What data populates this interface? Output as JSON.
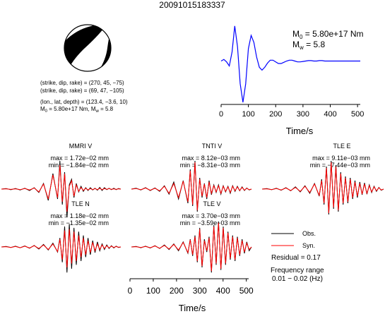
{
  "figure_title": "20091015183337",
  "mechanism": {
    "line1": "(strike, dip, rake) = (270, 45, −75)",
    "line2": "(strike, dip, rake) = (69, 47, −105)",
    "line3": "(lon., lat, depth) = (123.4, −3.6, 10)",
    "line4_prefix": "M",
    "line4_sub": "0",
    "line4_rest": " = 5.80e+17 Nm, M",
    "line4_sub2": "w",
    "line4_end": " = 5.8",
    "colors": {
      "compression": "#000000",
      "dilatation": "#ffffff"
    }
  },
  "moment_rate": {
    "m0_prefix": "M",
    "m0_sub": "0",
    "m0_rest": " = 5.80e+17 Nm",
    "mw_prefix": "M",
    "mw_sub": "w",
    "mw_rest": " = 5.8",
    "xlabel": "Time/s",
    "xticks": [
      "0",
      "100",
      "200",
      "300",
      "400",
      "500"
    ],
    "color": "#0000ff"
  },
  "traces": [
    {
      "station": "MMRI V",
      "max": "max = 1.72e−02 mm",
      "min": "min = −1.84e−02 mm"
    },
    {
      "station": "TNTI V",
      "max": "max = 8.12e−03 mm",
      "min": "min = −8.31e−03 mm"
    },
    {
      "station": "TLE E",
      "max": "max = 9.11e−03 mm",
      "min": "min = −7.44e−03 mm"
    },
    {
      "station": "TLE N",
      "max": "max = 1.18e−02 mm",
      "min": "min = −1.35e−02 mm"
    },
    {
      "station": "TLE V",
      "max": "max = 3.70e−03 mm",
      "min": "min = −3.59e−03 mm"
    }
  ],
  "waveform_axis": {
    "xlabel": "Time/s",
    "xticks": [
      "0",
      "100",
      "200",
      "300",
      "400",
      "500"
    ]
  },
  "legend": {
    "obs_label": "Obs.",
    "syn_label": "Syn.",
    "obs_color": "#000000",
    "syn_color": "#ff0000",
    "residual": "Residual = 0.17",
    "freq_label": "Frequency range",
    "freq_value": "0.01 − 0.02 (Hz)"
  },
  "chart_data": [
    {
      "type": "line",
      "name": "moment-rate-function",
      "xlabel": "Time/s",
      "ylabel": "",
      "xlim": [
        0,
        510
      ],
      "ylim": [
        -1.0,
        1.0
      ],
      "x": [
        0,
        10,
        20,
        30,
        40,
        50,
        60,
        70,
        80,
        90,
        100,
        110,
        120,
        130,
        140,
        150,
        160,
        170,
        180,
        190,
        200,
        210,
        220,
        230,
        240,
        250,
        260,
        270,
        280,
        290,
        300,
        310,
        320,
        330,
        340,
        350,
        360,
        370,
        380,
        390,
        400,
        410,
        420,
        430,
        440,
        450,
        460,
        470,
        480,
        490,
        500,
        510
      ],
      "series": [
        {
          "values": [
            0.0,
            0.04,
            -0.02,
            -0.12,
            0.22,
            0.85,
            0.35,
            -0.55,
            -1.0,
            -0.55,
            0.3,
            0.62,
            0.45,
            0.1,
            -0.15,
            -0.22,
            -0.15,
            -0.05,
            0.02,
            0.02,
            -0.02,
            -0.06,
            -0.06,
            -0.03,
            0.0,
            0.02,
            0.02,
            0.0,
            -0.02,
            -0.02,
            -0.01,
            0.0,
            0.01,
            0.01,
            0.0,
            0.0,
            0.01,
            0.01,
            0.0,
            0.0,
            0.0,
            0.0,
            0.0,
            0.0,
            0.0,
            0.0,
            0.0,
            0.0,
            0.0,
            0.0,
            0.0,
            0.0
          ]
        }
      ]
    },
    {
      "type": "line",
      "name": "waveform-fits",
      "xlabel": "Time/s",
      "ylabel": "",
      "xlim": [
        0,
        510
      ],
      "ylim": [
        -1.05,
        1.05
      ],
      "x": [
        0,
        20,
        40,
        60,
        80,
        100,
        120,
        140,
        160,
        180,
        200,
        220,
        240,
        250,
        260,
        270,
        280,
        290,
        300,
        310,
        320,
        330,
        340,
        350,
        360,
        370,
        380,
        390,
        400,
        410,
        420,
        430,
        440,
        450,
        460,
        470,
        480,
        490,
        500,
        510
      ],
      "series": [
        {
          "name": "Obs.",
          "trace": "MMRI V",
          "values": [
            0.0,
            0.02,
            -0.02,
            0.02,
            -0.03,
            0.03,
            -0.05,
            0.05,
            -0.12,
            0.2,
            -0.4,
            0.55,
            -0.35,
            1.0,
            -0.55,
            0.6,
            -1.0,
            0.15,
            0.35,
            -0.3,
            0.2,
            -0.1,
            0.1,
            -0.08,
            0.05,
            -0.05,
            0.05,
            -0.03,
            0.03,
            -0.04,
            0.06,
            -0.05,
            0.05,
            -0.02,
            0.03,
            -0.02,
            0.03,
            -0.02,
            0.02,
            0.0
          ]
        },
        {
          "name": "Syn.",
          "trace": "MMRI V",
          "values": [
            0.0,
            0.01,
            -0.01,
            0.01,
            -0.02,
            0.02,
            -0.03,
            0.04,
            -0.1,
            0.18,
            -0.35,
            0.5,
            -0.3,
            0.85,
            -0.45,
            0.55,
            -0.8,
            0.1,
            0.3,
            -0.25,
            0.15,
            -0.08,
            0.06,
            -0.05,
            0.03,
            -0.03,
            0.02,
            -0.02,
            0.02,
            -0.02,
            0.03,
            -0.02,
            0.02,
            -0.01,
            0.02,
            -0.01,
            0.01,
            -0.01,
            0.01,
            0.0
          ]
        },
        {
          "name": "Obs.",
          "trace": "TNTI V",
          "values": [
            0.0,
            0.03,
            -0.03,
            0.05,
            -0.05,
            0.04,
            -0.08,
            0.12,
            -0.18,
            0.25,
            -0.35,
            0.3,
            -0.5,
            0.7,
            -0.6,
            1.0,
            -0.8,
            0.4,
            -0.3,
            0.2,
            -0.35,
            0.3,
            -0.2,
            0.15,
            -0.12,
            0.15,
            -0.18,
            0.12,
            -0.1,
            0.1,
            -0.15,
            0.12,
            -0.08,
            0.1,
            -0.06,
            0.08,
            -0.05,
            0.04,
            -0.03,
            0.0
          ]
        },
        {
          "name": "Syn.",
          "trace": "TNTI V",
          "values": [
            0.0,
            0.02,
            -0.02,
            0.04,
            -0.04,
            0.03,
            -0.06,
            0.1,
            -0.15,
            0.2,
            -0.3,
            0.28,
            -0.45,
            0.65,
            -0.55,
            0.95,
            -0.75,
            0.35,
            -0.25,
            0.18,
            -0.3,
            0.25,
            -0.15,
            0.12,
            -0.1,
            0.12,
            -0.15,
            0.1,
            -0.08,
            0.08,
            -0.12,
            0.1,
            -0.06,
            0.08,
            -0.05,
            0.06,
            -0.04,
            0.03,
            -0.02,
            0.0
          ]
        },
        {
          "name": "Obs.",
          "trace": "TLE E",
          "values": [
            0.0,
            0.02,
            -0.02,
            0.03,
            -0.04,
            0.05,
            -0.06,
            0.08,
            -0.1,
            0.12,
            -0.15,
            0.2,
            -0.25,
            0.35,
            -0.55,
            0.8,
            -0.9,
            1.0,
            -0.7,
            0.85,
            -0.8,
            0.6,
            -0.55,
            0.45,
            -0.5,
            0.4,
            -0.35,
            0.3,
            -0.3,
            0.25,
            -0.2,
            0.22,
            -0.18,
            0.15,
            -0.12,
            0.1,
            -0.08,
            0.06,
            -0.04,
            0.0
          ]
        },
        {
          "name": "Syn.",
          "trace": "TLE E",
          "values": [
            0.0,
            0.01,
            -0.02,
            0.02,
            -0.03,
            0.04,
            -0.05,
            0.06,
            -0.08,
            0.1,
            -0.12,
            0.18,
            -0.22,
            0.3,
            -0.5,
            0.75,
            -0.85,
            0.95,
            -0.65,
            0.8,
            -0.75,
            0.55,
            -0.5,
            0.4,
            -0.45,
            0.35,
            -0.3,
            0.25,
            -0.25,
            0.2,
            -0.18,
            0.18,
            -0.15,
            0.12,
            -0.1,
            0.08,
            -0.06,
            0.05,
            -0.03,
            0.0
          ]
        },
        {
          "name": "Obs.",
          "trace": "TLE N",
          "values": [
            0.0,
            0.02,
            -0.02,
            0.03,
            -0.03,
            0.04,
            -0.05,
            0.06,
            -0.08,
            0.1,
            -0.12,
            0.15,
            -0.2,
            0.35,
            -0.6,
            0.8,
            -1.0,
            0.9,
            -0.85,
            0.75,
            -0.7,
            0.6,
            -0.55,
            0.45,
            -0.4,
            0.35,
            -0.3,
            0.25,
            -0.22,
            0.2,
            -0.15,
            0.12,
            -0.1,
            0.08,
            -0.06,
            0.05,
            -0.04,
            0.03,
            -0.02,
            0.0
          ]
        },
        {
          "name": "Syn.",
          "trace": "TLE N",
          "values": [
            0.0,
            0.01,
            -0.02,
            0.02,
            -0.03,
            0.03,
            -0.04,
            0.05,
            -0.06,
            0.08,
            -0.1,
            0.12,
            -0.18,
            0.3,
            -0.5,
            0.65,
            -0.8,
            0.7,
            -0.65,
            0.6,
            -0.55,
            0.45,
            -0.4,
            0.35,
            -0.3,
            0.25,
            -0.22,
            0.18,
            -0.15,
            0.12,
            -0.1,
            0.08,
            -0.06,
            0.05,
            -0.04,
            0.03,
            -0.02,
            0.02,
            -0.01,
            0.0
          ]
        },
        {
          "name": "Obs.",
          "trace": "TLE V",
          "values": [
            0.0,
            0.02,
            -0.03,
            0.03,
            -0.04,
            0.05,
            -0.06,
            0.08,
            -0.1,
            0.12,
            -0.15,
            0.2,
            -0.25,
            0.3,
            -0.35,
            0.45,
            -0.6,
            0.75,
            -0.8,
            0.3,
            -0.2,
            0.4,
            -1.0,
            0.85,
            -0.7,
            1.0,
            -0.9,
            0.8,
            -0.7,
            0.6,
            -0.5,
            0.45,
            -0.55,
            0.4,
            -0.35,
            0.3,
            -0.25,
            0.2,
            -0.15,
            0.0
          ]
        },
        {
          "name": "Syn.",
          "trace": "TLE V",
          "values": [
            0.0,
            0.01,
            -0.02,
            0.02,
            -0.03,
            0.04,
            -0.05,
            0.06,
            -0.08,
            0.1,
            -0.12,
            0.18,
            -0.22,
            0.28,
            -0.3,
            0.4,
            -0.55,
            0.7,
            -0.75,
            0.25,
            -0.15,
            0.35,
            -0.95,
            0.8,
            -0.65,
            0.95,
            -0.85,
            0.75,
            -0.65,
            0.55,
            -0.45,
            0.4,
            -0.5,
            0.35,
            -0.3,
            0.25,
            -0.2,
            0.15,
            -0.1,
            0.0
          ]
        }
      ]
    }
  ]
}
